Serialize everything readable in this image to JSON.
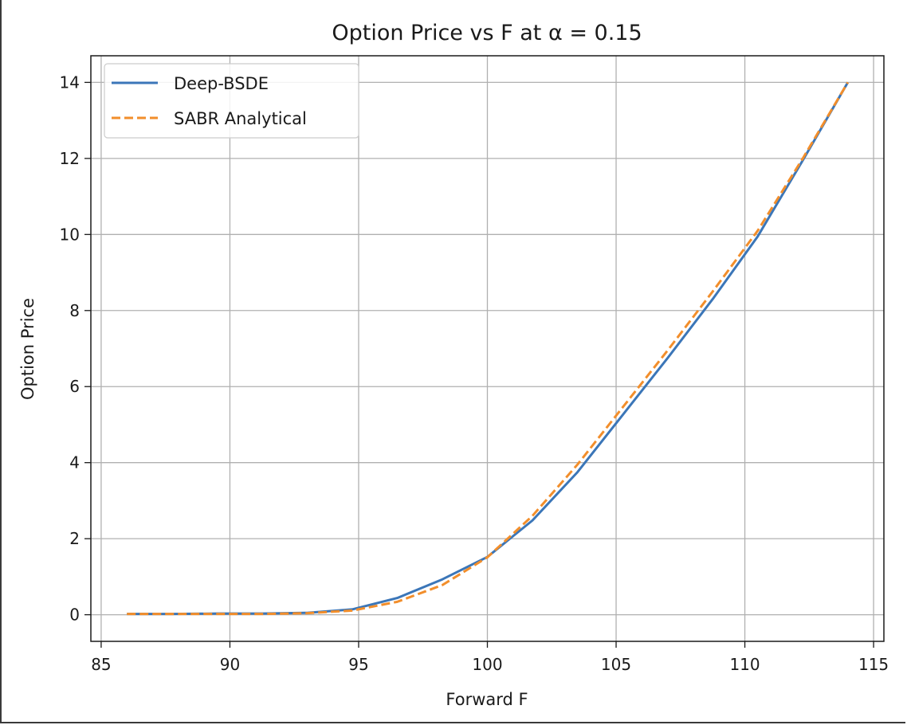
{
  "chart_data": {
    "type": "line",
    "title": "Option Price vs F at α = 0.15",
    "xlabel": "Forward F",
    "ylabel": "Option Price",
    "xlim": [
      84.6,
      115.4
    ],
    "ylim": [
      -0.7,
      14.7
    ],
    "xticks": [
      85,
      90,
      95,
      100,
      105,
      110,
      115
    ],
    "yticks": [
      0,
      2,
      4,
      6,
      8,
      10,
      12,
      14
    ],
    "grid": true,
    "legend_position": "upper-left",
    "x": [
      86.0,
      87.75,
      89.5,
      91.25,
      93.0,
      94.75,
      96.5,
      98.25,
      100.0,
      101.75,
      103.5,
      105.25,
      107.0,
      108.75,
      110.5,
      112.25,
      114.0
    ],
    "series": [
      {
        "name": "Deep-BSDE",
        "color": "#3b76b8",
        "style": "solid",
        "values": [
          0.02,
          0.02,
          0.03,
          0.03,
          0.05,
          0.14,
          0.44,
          0.93,
          1.52,
          2.48,
          3.75,
          5.25,
          6.75,
          8.3,
          9.95,
          11.95,
          14.0
        ]
      },
      {
        "name": "SABR Analytical",
        "color": "#f28e2b",
        "style": "dashed",
        "values": [
          0.02,
          0.02,
          0.02,
          0.02,
          0.04,
          0.11,
          0.34,
          0.78,
          1.51,
          2.6,
          3.95,
          5.45,
          6.95,
          8.5,
          10.1,
          12.0,
          14.0
        ]
      }
    ]
  }
}
